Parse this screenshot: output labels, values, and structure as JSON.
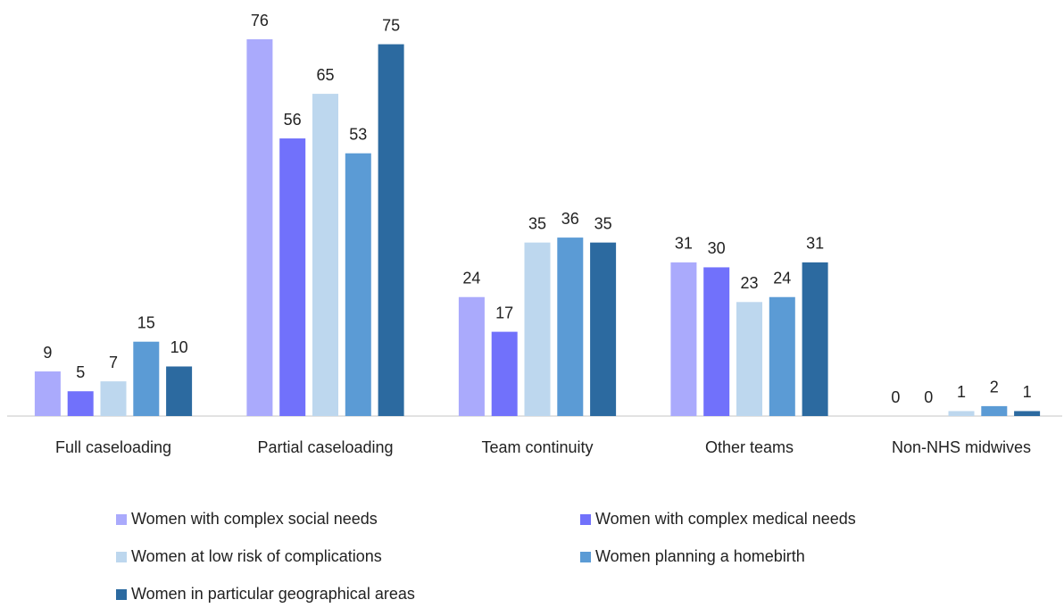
{
  "chart_data": {
    "type": "bar",
    "categories": [
      "Full caseloading",
      "Partial caseloading",
      "Team continuity",
      "Other teams",
      "Non-NHS midwives"
    ],
    "series": [
      {
        "name": "Women with complex social needs",
        "color": "#aaaafc",
        "values": [
          9,
          76,
          24,
          31,
          0
        ]
      },
      {
        "name": "Women with complex medical needs",
        "color": "#7171fb",
        "values": [
          5,
          56,
          17,
          30,
          0
        ]
      },
      {
        "name": "Women at low risk of complications",
        "color": "#bdd7ee",
        "values": [
          7,
          65,
          35,
          23,
          1
        ]
      },
      {
        "name": "Women planning a homebirth",
        "color": "#5b9bd5",
        "values": [
          15,
          53,
          36,
          24,
          2
        ]
      },
      {
        "name": "Women in particular geographical areas",
        "color": "#2c6aa0",
        "values": [
          10,
          75,
          35,
          31,
          1
        ]
      }
    ]
  }
}
